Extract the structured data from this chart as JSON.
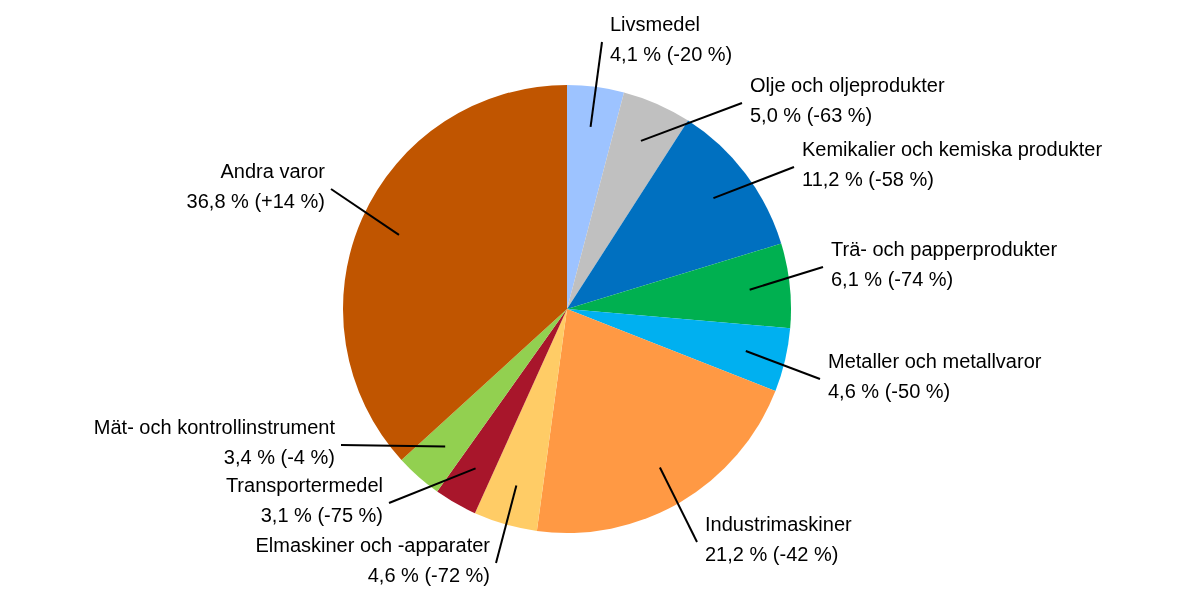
{
  "chart_data": {
    "type": "pie",
    "categories": [
      "Livsmedel",
      "Olje och oljeprodukter",
      "Kemikalier och kemiska produkter",
      "Trä- och papperprodukter",
      "Metaller och metallvaror",
      "Industrimaskiner",
      "Elmaskiner och -apparater",
      "Transportermedel",
      "Mät- och kontrollinstrument",
      "Andra varor"
    ],
    "values": [
      4.1,
      5.0,
      11.2,
      6.1,
      4.6,
      21.2,
      4.6,
      3.1,
      3.4,
      36.8
    ],
    "colors": [
      "#9dc3ff",
      "#c0c0c0",
      "#0070c0",
      "#00b050",
      "#00b0f0",
      "#ff9944",
      "#ffcc66",
      "#a8162b",
      "#92d050",
      "#c05500"
    ],
    "value_labels": [
      "4,1 % (-20 %)",
      "5,0 % (-63 %)",
      "11,2 % (-58 %)",
      "6,1 % (-74 %)",
      "4,6 % (-50 %)",
      "21,2 % (-42 %)",
      "4,6 % (-72 %)",
      "3,1 % (-75 %)",
      "3,4 % (-4 %)",
      "36,8 % (+14 %)"
    ]
  }
}
